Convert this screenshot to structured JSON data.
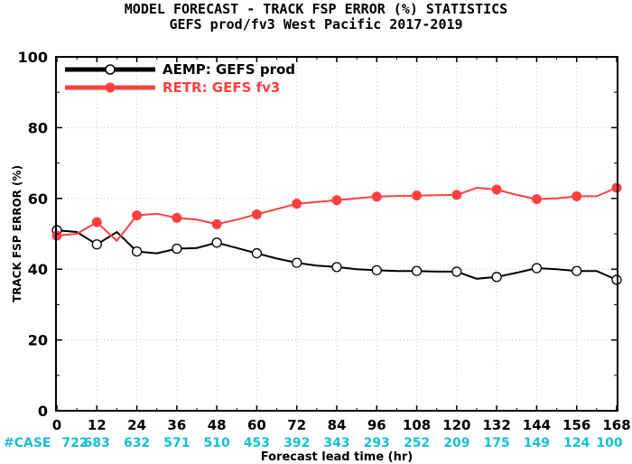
{
  "chart_data": {
    "type": "line",
    "title": "MODEL FORECAST - TRACK FSP ERROR (%) STATISTICS",
    "subtitle": "GEFS prod/fv3 West Pacific 2017-2019",
    "xlabel": "Forecast lead time (hr)",
    "ylabel": "TRACK FSP ERROR (%)",
    "xlim": [
      0,
      168
    ],
    "ylim": [
      0,
      100
    ],
    "xticks": [
      0,
      12,
      24,
      36,
      48,
      60,
      72,
      84,
      96,
      108,
      120,
      132,
      144,
      156,
      168
    ],
    "yticks": [
      0,
      20,
      40,
      60,
      80,
      100
    ],
    "grid": true,
    "legend_position": "top-left",
    "case_label": "#CASE",
    "case_counts": [
      "722",
      "683",
      "632",
      "571",
      "510",
      "453",
      "392",
      "343",
      "293",
      "252",
      "209",
      "175",
      "149",
      "124",
      "100"
    ],
    "series": [
      {
        "name": "AEMP: GEFS prod",
        "color": "#000000",
        "x": [
          0,
          6,
          12,
          18,
          24,
          30,
          36,
          42,
          48,
          54,
          60,
          66,
          72,
          78,
          84,
          90,
          96,
          102,
          108,
          114,
          120,
          126,
          132,
          138,
          144,
          150,
          156,
          162,
          168
        ],
        "y": [
          51,
          50.5,
          47,
          50.5,
          45,
          44.5,
          45.8,
          46,
          47.5,
          46,
          44.5,
          43,
          41.8,
          41,
          40.6,
          40,
          39.7,
          39.5,
          39.5,
          39.3,
          39.3,
          37.3,
          37.8,
          39,
          40.3,
          40,
          39.5,
          39.5,
          37
        ],
        "markers_at": [
          0,
          12,
          24,
          36,
          48,
          60,
          72,
          84,
          96,
          108,
          120,
          132,
          144,
          156,
          168
        ]
      },
      {
        "name": "RETR: GEFS fv3",
        "color": "#ff4040",
        "x": [
          0,
          6,
          12,
          18,
          24,
          30,
          36,
          42,
          48,
          54,
          60,
          66,
          72,
          78,
          84,
          90,
          96,
          102,
          108,
          114,
          120,
          126,
          132,
          138,
          144,
          150,
          156,
          162,
          168
        ],
        "y": [
          49.5,
          50,
          53.3,
          48,
          55.2,
          55.7,
          54.5,
          54,
          52.7,
          54,
          55.5,
          57,
          58.5,
          59,
          59.5,
          60,
          60.5,
          60.7,
          60.8,
          60.9,
          61,
          63,
          62.5,
          61,
          59.8,
          60,
          60.6,
          60.6,
          63
        ],
        "markers_at": [
          0,
          12,
          24,
          36,
          48,
          60,
          72,
          84,
          96,
          108,
          120,
          132,
          144,
          156,
          168
        ]
      }
    ]
  }
}
